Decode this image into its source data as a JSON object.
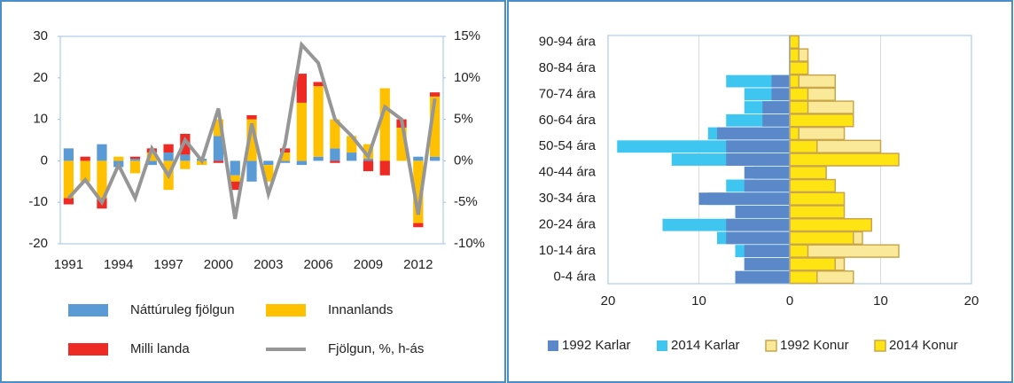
{
  "chart_data": [
    {
      "type": "bar",
      "stacked": true,
      "categories": [
        "1991",
        null,
        null,
        "1994",
        null,
        null,
        "1997",
        null,
        null,
        "2000",
        null,
        null,
        "2003",
        null,
        null,
        "2006",
        null,
        null,
        "2009",
        null,
        null,
        "2012",
        null
      ],
      "ylim": [
        -20,
        30
      ],
      "yticks": [
        -20,
        -10,
        0,
        10,
        20,
        30
      ],
      "y2lim": [
        -10,
        15
      ],
      "y2ticks": [
        {
          "value": -10,
          "label": "-10%"
        },
        {
          "value": -5,
          "label": "-5%"
        },
        {
          "value": 0,
          "label": "0%"
        },
        {
          "value": 5,
          "label": "5%"
        },
        {
          "value": 10,
          "label": "10%"
        },
        {
          "value": 15,
          "label": "15%"
        }
      ],
      "grid": false,
      "series": [
        {
          "name": "Náttúruleg fjölgun",
          "color": "#5b9bd5",
          "values": [
            3,
            0,
            4,
            -1.5,
            0.5,
            -1,
            2,
            1.5,
            0.5,
            6,
            -3.5,
            -5,
            -1,
            -0.5,
            -1,
            1,
            3,
            2,
            0.5,
            0,
            0,
            1,
            1
          ]
        },
        {
          "name": "Innanlands",
          "color": "#ffc000",
          "values": [
            -9,
            -5,
            -9,
            1,
            -3,
            2,
            -7,
            -2,
            -1,
            4,
            -1.5,
            10,
            -4,
            2,
            14,
            17,
            7,
            4,
            3.5,
            17.5,
            8,
            -15,
            14.5
          ]
        },
        {
          "name": "Milli landa",
          "color": "#ee2a24",
          "values": [
            -1.5,
            1,
            -2.5,
            0,
            0.5,
            1,
            2,
            5,
            0,
            -0.5,
            -2,
            1,
            0,
            1,
            7,
            1,
            -0.5,
            0,
            -2.5,
            -3.5,
            2,
            -1,
            1
          ]
        },
        {
          "name": "Fjölgun, %, h-ás",
          "color": "#969696",
          "type": "line",
          "axis": "y2",
          "values": [
            -4.5,
            -2.3,
            -5,
            -0.5,
            -4.5,
            1.5,
            -1.8,
            2.5,
            0,
            6.3,
            -7,
            4.5,
            -4,
            2,
            14,
            11.8,
            5,
            3,
            0.5,
            6.5,
            5,
            -6.5,
            7.5
          ]
        }
      ]
    },
    {
      "type": "bar",
      "orientation": "horizontal",
      "overlap": true,
      "categories": [
        "0-4 ára",
        null,
        "10-14 ára",
        null,
        "20-24 ára",
        null,
        "30-34 ára",
        null,
        "40-44 ára",
        null,
        "50-54 ára",
        null,
        "60-64 ára",
        null,
        "70-74 ára",
        null,
        "80-84 ára",
        null,
        "90-94 ára"
      ],
      "xlim": [
        -20,
        20
      ],
      "xticks": [
        {
          "value": -20,
          "label": "20"
        },
        {
          "value": -10,
          "label": "10"
        },
        0,
        10,
        20
      ],
      "grid": true,
      "series": [
        {
          "name": "2014 Karlar",
          "color": "#3ec6f0",
          "values": [
            -6,
            -5,
            -6,
            -8,
            -14,
            -6,
            -9,
            -7,
            -4,
            -13,
            -19,
            -9,
            -7,
            -5,
            -5,
            -7,
            0,
            0,
            0
          ]
        },
        {
          "name": "1992 Karlar",
          "color": "#5a88c8",
          "values": [
            -6,
            -5,
            -5,
            -7,
            -7,
            -6,
            -10,
            -5,
            -5,
            -7,
            -7,
            -8,
            -3,
            -3,
            -2,
            -2,
            0,
            0,
            0
          ]
        },
        {
          "name": "1992 Konur",
          "color": "#fbe99a",
          "edgecolor": "#c9a64a",
          "values": [
            7,
            6,
            12,
            8,
            9,
            5,
            5,
            3,
            4,
            10,
            10,
            6,
            7,
            7,
            5,
            5,
            2,
            2,
            1
          ]
        },
        {
          "name": "2014 Konur",
          "color": "#ffe414",
          "edgecolor": "#c9a64a",
          "values": [
            3,
            5,
            2,
            7,
            9,
            6,
            6,
            5,
            4,
            12,
            3,
            1,
            7,
            2,
            2,
            1,
            2,
            1,
            1
          ]
        }
      ],
      "legend_order": [
        1,
        0,
        2,
        3
      ]
    }
  ]
}
